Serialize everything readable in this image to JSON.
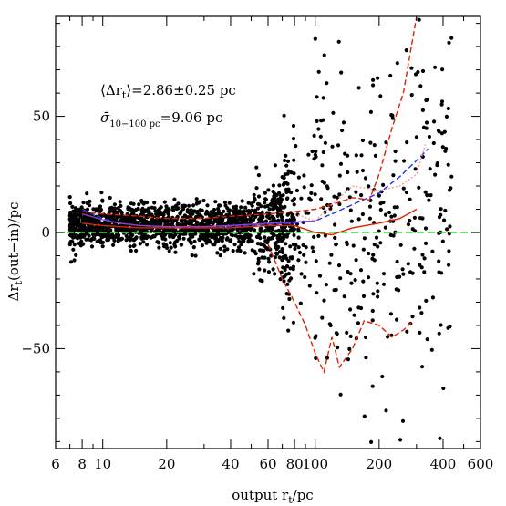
{
  "chart_data": {
    "type": "scatter",
    "title": "",
    "xlabel": "output r_t/pc",
    "ylabel": "Δr_t(out−in)/pc",
    "xscale": "log",
    "xlim": [
      6,
      600
    ],
    "ylim": [
      -93,
      93
    ],
    "grid": false,
    "legend": "none",
    "x_ticks": [
      6,
      8,
      10,
      20,
      40,
      60,
      80,
      100,
      200,
      400,
      600
    ],
    "x_tick_labels": [
      "6",
      "8",
      "10",
      "20",
      "40",
      "60",
      "80",
      "100",
      "200",
      "400",
      "600"
    ],
    "y_ticks": [
      -50,
      0,
      50
    ],
    "y_tick_labels": [
      "−50",
      "0",
      "50"
    ],
    "annotations": [
      {
        "text": "⟨Δr_t⟩=2.86±0.25 pc"
      },
      {
        "text": "σ̄_10−100 pc=9.06 pc"
      }
    ],
    "reference_line": {
      "y": 0,
      "color": "#33dd33",
      "style": "dashed"
    },
    "series": [
      {
        "kind": "points",
        "color": "#000000",
        "values": []
      },
      {
        "kind": "running-mean",
        "color": "#2233ee",
        "style": "dashed",
        "x": [
          8,
          10,
          12,
          15,
          20,
          30,
          40,
          60,
          80,
          100,
          120,
          150,
          200,
          250,
          300,
          340
        ],
        "values": [
          10,
          6,
          4,
          3,
          2,
          2,
          2.5,
          3.5,
          4,
          5,
          8,
          12,
          17,
          24,
          31,
          36
        ]
      },
      {
        "kind": "running-mean",
        "color": "#8844cc",
        "style": "solid",
        "x": [
          8,
          10,
          12,
          15,
          20,
          30,
          40,
          60,
          80,
          100
        ],
        "values": [
          8,
          5.5,
          4,
          3,
          2.5,
          2.5,
          3,
          4,
          4.5,
          5
        ]
      },
      {
        "kind": "upper-envelope",
        "color": "#dd2200",
        "style": "dashed",
        "x": [
          8,
          10,
          15,
          20,
          30,
          40,
          60,
          80,
          100,
          120,
          150,
          180,
          200,
          230,
          260,
          300
        ],
        "values": [
          9,
          8,
          7,
          6,
          6,
          7,
          8,
          9,
          10,
          12,
          15,
          14,
          25,
          45,
          60,
          93
        ]
      },
      {
        "kind": "lower-envelope",
        "color": "#dd2200",
        "style": "dashed",
        "x": [
          60,
          70,
          80,
          90,
          100,
          110,
          120,
          130,
          150,
          170,
          200,
          230,
          260,
          290
        ],
        "values": [
          -5,
          -20,
          -30,
          -40,
          -52,
          -60,
          -45,
          -58,
          -50,
          -38,
          -40,
          -45,
          -42,
          -38
        ]
      },
      {
        "kind": "median",
        "color": "#dd2200",
        "style": "solid",
        "x": [
          8,
          10,
          15,
          20,
          30,
          40,
          60,
          80,
          100,
          120,
          150,
          200,
          250,
          300
        ],
        "values": [
          4,
          3,
          2,
          2,
          2,
          2,
          3,
          3,
          0,
          -1,
          2,
          4,
          6,
          10
        ]
      },
      {
        "kind": "quartile",
        "color": "#ff9999",
        "style": "dotted",
        "x": [
          80,
          100,
          120,
          150,
          200,
          250,
          300,
          330
        ],
        "values": [
          8,
          5,
          12,
          20,
          18,
          20,
          25,
          38
        ]
      }
    ]
  }
}
